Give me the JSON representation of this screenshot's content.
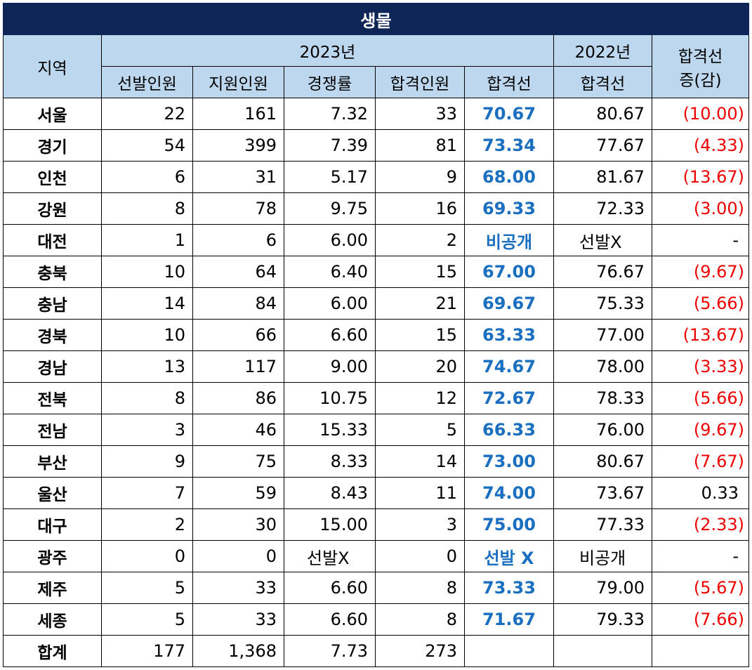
{
  "title": "생물",
  "headers": {
    "region": "지역",
    "year_2023": "2023년",
    "year_2022": "2022년",
    "change_line1": "합격선",
    "change_line2": "증(감)",
    "sub": [
      "선발인원",
      "지원인원",
      "경쟁률",
      "합격인원",
      "합격선"
    ],
    "sub_2022": "합격선"
  },
  "rows": [
    {
      "region": "서울",
      "selected": "22",
      "applicants": "161",
      "ratio": "7.32",
      "passed": "33",
      "cutoff": "70.67",
      "cutoff_2022": "80.67",
      "change": "(10.00)"
    },
    {
      "region": "경기",
      "selected": "54",
      "applicants": "399",
      "ratio": "7.39",
      "passed": "81",
      "cutoff": "73.34",
      "cutoff_2022": "77.67",
      "change": "(4.33)"
    },
    {
      "region": "인천",
      "selected": "6",
      "applicants": "31",
      "ratio": "5.17",
      "passed": "9",
      "cutoff": "68.00",
      "cutoff_2022": "81.67",
      "change": "(13.67)"
    },
    {
      "region": "강원",
      "selected": "8",
      "applicants": "78",
      "ratio": "9.75",
      "passed": "16",
      "cutoff": "69.33",
      "cutoff_2022": "72.33",
      "change": "(3.00)"
    },
    {
      "region": "대전",
      "selected": "1",
      "applicants": "6",
      "ratio": "6.00",
      "passed": "2",
      "cutoff": "비공개",
      "cutoff_2022": "선발X",
      "change": "-"
    },
    {
      "region": "충북",
      "selected": "10",
      "applicants": "64",
      "ratio": "6.40",
      "passed": "15",
      "cutoff": "67.00",
      "cutoff_2022": "76.67",
      "change": "(9.67)"
    },
    {
      "region": "충남",
      "selected": "14",
      "applicants": "84",
      "ratio": "6.00",
      "passed": "21",
      "cutoff": "69.67",
      "cutoff_2022": "75.33",
      "change": "(5.66)"
    },
    {
      "region": "경북",
      "selected": "10",
      "applicants": "66",
      "ratio": "6.60",
      "passed": "15",
      "cutoff": "63.33",
      "cutoff_2022": "77.00",
      "change": "(13.67)"
    },
    {
      "region": "경남",
      "selected": "13",
      "applicants": "117",
      "ratio": "9.00",
      "passed": "20",
      "cutoff": "74.67",
      "cutoff_2022": "78.00",
      "change": "(3.33)"
    },
    {
      "region": "전북",
      "selected": "8",
      "applicants": "86",
      "ratio": "10.75",
      "passed": "12",
      "cutoff": "72.67",
      "cutoff_2022": "78.33",
      "change": "(5.66)"
    },
    {
      "region": "전남",
      "selected": "3",
      "applicants": "46",
      "ratio": "15.33",
      "passed": "5",
      "cutoff": "66.33",
      "cutoff_2022": "76.00",
      "change": "(9.67)"
    },
    {
      "region": "부산",
      "selected": "9",
      "applicants": "75",
      "ratio": "8.33",
      "passed": "14",
      "cutoff": "73.00",
      "cutoff_2022": "80.67",
      "change": "(7.67)"
    },
    {
      "region": "울산",
      "selected": "7",
      "applicants": "59",
      "ratio": "8.43",
      "passed": "11",
      "cutoff": "74.00",
      "cutoff_2022": "73.67",
      "change": "0.33"
    },
    {
      "region": "대구",
      "selected": "2",
      "applicants": "30",
      "ratio": "15.00",
      "passed": "3",
      "cutoff": "75.00",
      "cutoff_2022": "77.33",
      "change": "(2.33)"
    },
    {
      "region": "광주",
      "selected": "0",
      "applicants": "0",
      "ratio": "선발X",
      "passed": "0",
      "cutoff": "선발 X",
      "cutoff_2022": "비공개",
      "change": "-"
    },
    {
      "region": "제주",
      "selected": "5",
      "applicants": "33",
      "ratio": "6.60",
      "passed": "8",
      "cutoff": "73.33",
      "cutoff_2022": "79.00",
      "change": "(5.67)"
    },
    {
      "region": "세종",
      "selected": "5",
      "applicants": "33",
      "ratio": "6.60",
      "passed": "8",
      "cutoff": "71.67",
      "cutoff_2022": "79.33",
      "change": "(7.66)"
    }
  ],
  "total": {
    "region": "합계",
    "selected": "177",
    "applicants": "1,368",
    "ratio": "7.73",
    "passed": "273",
    "cutoff": "",
    "cutoff_2022": "",
    "change": ""
  },
  "colors": {
    "title_bg": "#0e2557",
    "header_bg": "#bdd7ee",
    "cutoff_text": "#1a6fc0",
    "negative_text": "#ee0000"
  }
}
